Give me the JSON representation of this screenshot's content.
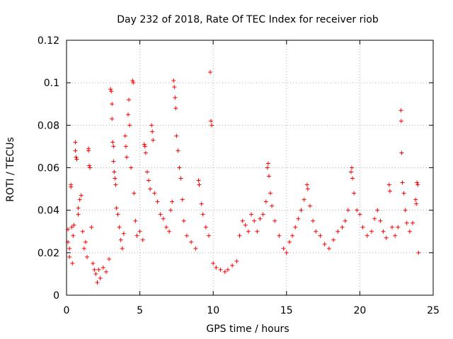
{
  "chart_data": {
    "type": "scatter",
    "title": "Day 232 of 2018, Rate Of TEC Index for receiver riob",
    "xlabel": "GPS time / hours",
    "ylabel": "ROTI / TECUs",
    "xlim": [
      0,
      25
    ],
    "ylim": [
      0,
      0.12
    ],
    "x_ticks": [
      0,
      5,
      10,
      15,
      20,
      25
    ],
    "x_tick_labels": [
      "0",
      "5",
      "10",
      "15",
      "20",
      "25"
    ],
    "y_ticks": [
      0,
      0.02,
      0.04,
      0.06,
      0.08,
      0.1,
      0.12
    ],
    "y_tick_labels": [
      "0",
      "0.02",
      "0.04",
      "0.06",
      "0.08",
      "0.1",
      "0.12"
    ],
    "grid": true,
    "marker": "plus",
    "color": "#ff0000",
    "series": [
      {
        "points": [
          [
            0.1,
            0.025
          ],
          [
            0.1,
            0.031
          ],
          [
            0.2,
            0.022
          ],
          [
            0.2,
            0.018
          ],
          [
            0.3,
            0.052
          ],
          [
            0.3,
            0.051
          ],
          [
            0.35,
            0.032
          ],
          [
            0.4,
            0.015
          ],
          [
            0.45,
            0.028
          ],
          [
            0.5,
            0.033
          ],
          [
            0.6,
            0.072
          ],
          [
            0.6,
            0.068
          ],
          [
            0.65,
            0.065
          ],
          [
            0.7,
            0.064
          ],
          [
            0.8,
            0.041
          ],
          [
            0.8,
            0.038
          ],
          [
            0.9,
            0.045
          ],
          [
            1.0,
            0.047
          ],
          [
            1.1,
            0.03
          ],
          [
            1.2,
            0.022
          ],
          [
            1.3,
            0.025
          ],
          [
            1.4,
            0.018
          ],
          [
            1.5,
            0.069
          ],
          [
            1.5,
            0.068
          ],
          [
            1.55,
            0.061
          ],
          [
            1.6,
            0.06
          ],
          [
            1.7,
            0.032
          ],
          [
            1.8,
            0.015
          ],
          [
            1.9,
            0.012
          ],
          [
            2.0,
            0.01
          ],
          [
            2.1,
            0.006
          ],
          [
            2.2,
            0.012
          ],
          [
            2.3,
            0.008
          ],
          [
            2.5,
            0.013
          ],
          [
            2.7,
            0.011
          ],
          [
            2.9,
            0.017
          ],
          [
            3.0,
            0.097
          ],
          [
            3.05,
            0.096
          ],
          [
            3.1,
            0.09
          ],
          [
            3.1,
            0.083
          ],
          [
            3.15,
            0.072
          ],
          [
            3.2,
            0.07
          ],
          [
            3.2,
            0.063
          ],
          [
            3.25,
            0.058
          ],
          [
            3.3,
            0.055
          ],
          [
            3.35,
            0.052
          ],
          [
            3.4,
            0.041
          ],
          [
            3.5,
            0.038
          ],
          [
            3.6,
            0.032
          ],
          [
            3.7,
            0.026
          ],
          [
            3.8,
            0.022
          ],
          [
            3.9,
            0.029
          ],
          [
            4.0,
            0.075
          ],
          [
            4.05,
            0.07
          ],
          [
            4.1,
            0.065
          ],
          [
            4.2,
            0.085
          ],
          [
            4.25,
            0.092
          ],
          [
            4.3,
            0.08
          ],
          [
            4.4,
            0.06
          ],
          [
            4.5,
            0.101
          ],
          [
            4.55,
            0.1
          ],
          [
            4.6,
            0.048
          ],
          [
            4.7,
            0.035
          ],
          [
            4.8,
            0.028
          ],
          [
            5.0,
            0.03
          ],
          [
            5.2,
            0.026
          ],
          [
            5.3,
            0.071
          ],
          [
            5.35,
            0.07
          ],
          [
            5.4,
            0.067
          ],
          [
            5.5,
            0.058
          ],
          [
            5.6,
            0.054
          ],
          [
            5.7,
            0.05
          ],
          [
            5.8,
            0.08
          ],
          [
            5.85,
            0.077
          ],
          [
            5.9,
            0.073
          ],
          [
            6.0,
            0.048
          ],
          [
            6.2,
            0.044
          ],
          [
            6.4,
            0.038
          ],
          [
            6.6,
            0.036
          ],
          [
            6.8,
            0.032
          ],
          [
            7.0,
            0.03
          ],
          [
            7.1,
            0.04
          ],
          [
            7.2,
            0.044
          ],
          [
            7.3,
            0.101
          ],
          [
            7.35,
            0.098
          ],
          [
            7.4,
            0.093
          ],
          [
            7.45,
            0.088
          ],
          [
            7.5,
            0.075
          ],
          [
            7.6,
            0.068
          ],
          [
            7.7,
            0.06
          ],
          [
            7.8,
            0.055
          ],
          [
            7.9,
            0.045
          ],
          [
            8.0,
            0.035
          ],
          [
            8.2,
            0.028
          ],
          [
            8.5,
            0.025
          ],
          [
            8.8,
            0.022
          ],
          [
            9.0,
            0.054
          ],
          [
            9.05,
            0.052
          ],
          [
            9.2,
            0.043
          ],
          [
            9.3,
            0.038
          ],
          [
            9.5,
            0.032
          ],
          [
            9.7,
            0.028
          ],
          [
            9.8,
            0.105
          ],
          [
            9.85,
            0.082
          ],
          [
            9.9,
            0.08
          ],
          [
            10.0,
            0.015
          ],
          [
            10.2,
            0.013
          ],
          [
            10.5,
            0.012
          ],
          [
            10.8,
            0.011
          ],
          [
            11.0,
            0.012
          ],
          [
            11.3,
            0.014
          ],
          [
            11.6,
            0.016
          ],
          [
            11.8,
            0.028
          ],
          [
            12.0,
            0.035
          ],
          [
            12.2,
            0.033
          ],
          [
            12.4,
            0.03
          ],
          [
            12.6,
            0.038
          ],
          [
            12.8,
            0.035
          ],
          [
            13.0,
            0.03
          ],
          [
            13.2,
            0.036
          ],
          [
            13.4,
            0.038
          ],
          [
            13.6,
            0.044
          ],
          [
            13.7,
            0.06
          ],
          [
            13.75,
            0.062
          ],
          [
            13.8,
            0.056
          ],
          [
            13.9,
            0.048
          ],
          [
            14.0,
            0.042
          ],
          [
            14.2,
            0.035
          ],
          [
            14.5,
            0.028
          ],
          [
            14.8,
            0.022
          ],
          [
            15.0,
            0.02
          ],
          [
            15.2,
            0.025
          ],
          [
            15.4,
            0.028
          ],
          [
            15.6,
            0.032
          ],
          [
            15.8,
            0.036
          ],
          [
            16.0,
            0.04
          ],
          [
            16.2,
            0.045
          ],
          [
            16.4,
            0.052
          ],
          [
            16.45,
            0.05
          ],
          [
            16.6,
            0.042
          ],
          [
            16.8,
            0.035
          ],
          [
            17.0,
            0.03
          ],
          [
            17.3,
            0.028
          ],
          [
            17.6,
            0.024
          ],
          [
            17.9,
            0.022
          ],
          [
            18.2,
            0.026
          ],
          [
            18.5,
            0.03
          ],
          [
            18.8,
            0.032
          ],
          [
            19.0,
            0.035
          ],
          [
            19.2,
            0.04
          ],
          [
            19.4,
            0.058
          ],
          [
            19.45,
            0.06
          ],
          [
            19.5,
            0.055
          ],
          [
            19.6,
            0.048
          ],
          [
            19.8,
            0.04
          ],
          [
            20.0,
            0.038
          ],
          [
            20.2,
            0.032
          ],
          [
            20.5,
            0.028
          ],
          [
            20.8,
            0.03
          ],
          [
            21.0,
            0.036
          ],
          [
            21.2,
            0.04
          ],
          [
            21.4,
            0.035
          ],
          [
            21.6,
            0.03
          ],
          [
            21.8,
            0.027
          ],
          [
            22.0,
            0.052
          ],
          [
            22.05,
            0.049
          ],
          [
            22.2,
            0.032
          ],
          [
            22.4,
            0.028
          ],
          [
            22.6,
            0.032
          ],
          [
            22.8,
            0.087
          ],
          [
            22.82,
            0.082
          ],
          [
            22.85,
            0.067
          ],
          [
            22.9,
            0.053
          ],
          [
            23.0,
            0.048
          ],
          [
            23.1,
            0.04
          ],
          [
            23.2,
            0.034
          ],
          [
            23.4,
            0.03
          ],
          [
            23.6,
            0.034
          ],
          [
            23.8,
            0.045
          ],
          [
            23.85,
            0.043
          ],
          [
            23.9,
            0.053
          ],
          [
            23.95,
            0.052
          ],
          [
            24.0,
            0.02
          ]
        ]
      }
    ]
  }
}
